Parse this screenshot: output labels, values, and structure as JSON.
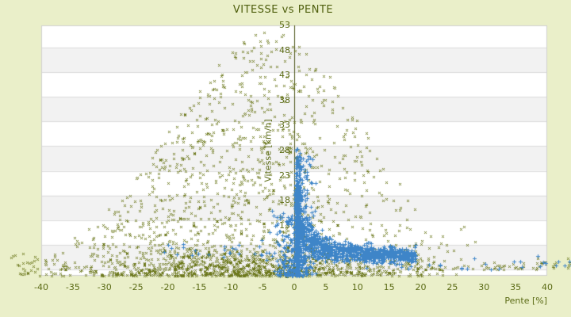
{
  "page": {
    "background_color": "#eaefc9",
    "text_color": "#5a6a14",
    "title_color": "#4f5f0e"
  },
  "chart_data": {
    "type": "scatter",
    "title": "VITESSE vs PENTE",
    "xlabel": "Pente [%]",
    "ylabel": "Vitesse [km/h]",
    "xlim": [
      -40,
      40
    ],
    "ylim": [
      3,
      53
    ],
    "x_ticks": [
      -40,
      -35,
      -30,
      -25,
      -20,
      -15,
      -10,
      -5,
      0,
      5,
      10,
      15,
      20,
      25,
      30,
      35,
      40
    ],
    "y_ticks": [
      3,
      8,
      13,
      18,
      23,
      28,
      33,
      38,
      43,
      48,
      53
    ],
    "legend": "none",
    "grid": "horizontal-bands",
    "zero_axis_line_x": 0,
    "style": {
      "plot_background": "#ffffff",
      "band_color": "#f2f2f2",
      "gridline_color": "#dcdcdc",
      "border_color": "#d0d0d0",
      "zero_axis_color": "#4a5416"
    },
    "series": [
      {
        "name": "olive-scatter",
        "marker": "x",
        "color": "#6e7a1f",
        "description": "Broad mound of speed vs slope points; dense floor at 3-9 km/h from -40% to +20%, envelope peaking near 50 km/h around slope -5 to 0, sparse tail along ~5 km/h out past +40%.",
        "clusters": [
          {
            "kind": "mound",
            "n": 1500,
            "xMean": -7,
            "xSd": 13,
            "xMin": -43.5,
            "xMax": 27,
            "envPeak": 52,
            "envMu": -4,
            "envSd": 15,
            "yMin": 3,
            "yPow": 1.7
          },
          {
            "kind": "strip",
            "n": 680,
            "xMean": -8,
            "xSd": 15,
            "xMin": -44,
            "xMax": 24,
            "yBase": 3,
            "ySd": 2.4,
            "yCap": 12
          },
          {
            "kind": "ustrip",
            "n": 75,
            "xMin": 18,
            "xMax": 44,
            "yBase": 4.2,
            "ySd": 1.0
          },
          {
            "kind": "ubox",
            "n": 12,
            "xMin": -45,
            "xMax": -40.5,
            "yMin": 4,
            "yMax": 7.5
          },
          {
            "kind": "ubox",
            "n": 6,
            "xMin": 25,
            "xMax": 36,
            "yMin": 6,
            "yMax": 13
          }
        ]
      },
      {
        "name": "blue-scatter",
        "marker": "+",
        "color": "#3e85c8",
        "description": "Dense hyperbolic band: ~15 km/h at +1% slope falling to ~7-8 km/h by +10..20%; solid vertical bar at slope 0 from 3 to ~29 km/h; sparse points at negative slopes and along ~5 km/h beyond +20%.",
        "clusters": [
          {
            "kind": "vbar",
            "n": 400,
            "xMin": 0.15,
            "xMax": 0.75,
            "xPow": 1,
            "yMin": 3,
            "yMax": 19.5,
            "yPow": 1
          },
          {
            "kind": "vbar",
            "n": 90,
            "xMin": 0.15,
            "xMax": 1.0,
            "xPow": 1,
            "yMin": 19,
            "yMax": 29,
            "yPow": 2
          },
          {
            "kind": "vbar",
            "n": 240,
            "xMin": 0.2,
            "xMax": 3.4,
            "xPow": 1.8,
            "yMin": 3,
            "yMax": 27,
            "yPow": 1.4
          },
          {
            "kind": "hyper",
            "n": 950,
            "x0": 0.6,
            "xSpan": 18.6,
            "xPow": 1.3,
            "yA": 6.4,
            "yB": 12,
            "yC": 0.9,
            "sBase": 0.75,
            "sAmp": 1.9,
            "sTau": 3.5,
            "yMin": 3.2
          },
          {
            "kind": "negexp",
            "n": 130,
            "scale": 1.7,
            "xMin": -6.5,
            "yBase": 3,
            "yAmp": 13,
            "yPow": 1.7
          },
          {
            "kind": "ustrip",
            "n": 28,
            "xMin": -21,
            "xMax": -1,
            "yBase": 6.8,
            "ySd": 1.2
          },
          {
            "kind": "ustrip",
            "n": 22,
            "xMin": 20,
            "xMax": 44,
            "yBase": 4.3,
            "ySd": 0.9
          }
        ]
      }
    ]
  }
}
